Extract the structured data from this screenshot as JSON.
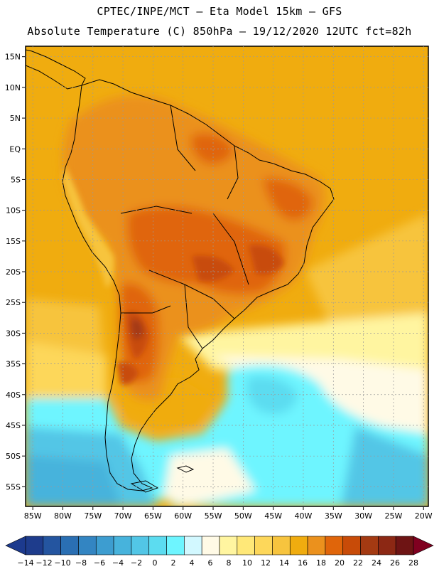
{
  "header": {
    "line1": "CPTEC/INPE/MCT –  Eta Model 15km – GFS",
    "line2": "Absolute Temperature (C) 850hPa – 19/12/2020 12UTC fct=82h"
  },
  "map": {
    "region": "South America",
    "lat_labels": [
      "15N",
      "10N",
      "5N",
      "EQ",
      "5S",
      "10S",
      "15S",
      "20S",
      "25S",
      "30S",
      "35S",
      "40S",
      "45S",
      "50S",
      "55S"
    ],
    "lon_labels": [
      "85W",
      "80W",
      "75W",
      "70W",
      "65W",
      "60W",
      "55W",
      "50W",
      "45W",
      "40W",
      "35W",
      "30W",
      "25W",
      "20W"
    ],
    "lat_values": [
      15,
      10,
      5,
      0,
      -5,
      -10,
      -15,
      -20,
      -25,
      -30,
      -35,
      -40,
      -45,
      -50,
      -55
    ],
    "lon_values": [
      -85,
      -80,
      -75,
      -70,
      -65,
      -60,
      -55,
      -50,
      -45,
      -40,
      -35,
      -30,
      -25,
      -20
    ]
  },
  "colorbar": {
    "labels": [
      "-14",
      "-12",
      "-10",
      "-8",
      "-6",
      "-4",
      "-2",
      "0",
      "2",
      "4",
      "6",
      "8",
      "10",
      "12",
      "14",
      "16",
      "18",
      "20",
      "22",
      "24",
      "26",
      "28"
    ],
    "colors": [
      "#1e3c8c",
      "#2455a0",
      "#2a6fb3",
      "#3385c2",
      "#3d9dd0",
      "#47b3dc",
      "#52c6e6",
      "#5cdcf0",
      "#6ef5ff",
      "#d2f8ff",
      "#fffae6",
      "#fff5a0",
      "#ffe878",
      "#fdd75a",
      "#f7c43e",
      "#f0ac0f",
      "#eb911d",
      "#e0650a",
      "#c84b08",
      "#a43a12",
      "#8c2814",
      "#6e1414"
    ],
    "under_color": "#1c3a8e",
    "over_color": "#800020"
  }
}
